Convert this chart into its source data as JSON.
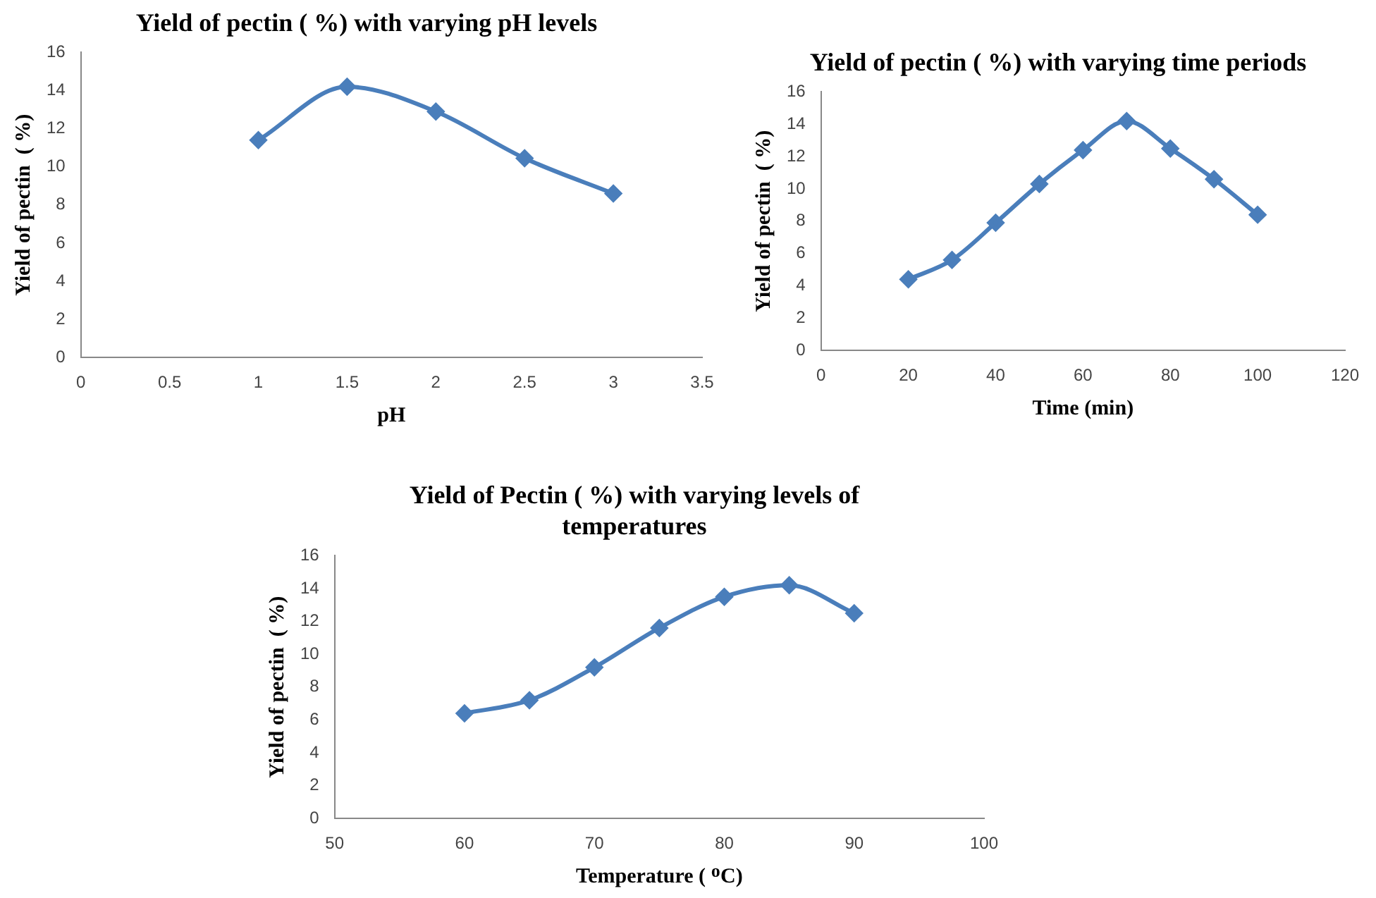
{
  "chart_data": [
    {
      "type": "line",
      "title": "Yield of pectin  ( %) with varying pH levels",
      "xlabel": "pH",
      "ylabel": "Yield of pectin  ( %)",
      "x": [
        1,
        1.5,
        2,
        2.5,
        3
      ],
      "series": [
        {
          "color": "#4a7ebb",
          "values": [
            11.4,
            14.2,
            12.9,
            10.45,
            8.6
          ]
        }
      ],
      "xlim": [
        0,
        3.5
      ],
      "xticks": [
        0,
        0.5,
        1,
        1.5,
        2,
        2.5,
        3,
        3.5
      ],
      "ylim": [
        0,
        16
      ],
      "yticks": [
        0,
        2,
        4,
        6,
        8,
        10,
        12,
        14,
        16
      ],
      "grid": false,
      "legend": false,
      "marker": "diamond",
      "line_style": "solid"
    },
    {
      "type": "line",
      "title": "Yield of pectin  ( %) with varying time periods",
      "xlabel": "Time (min)",
      "ylabel": "Yield of pectin  ( %)",
      "x": [
        20,
        30,
        40,
        50,
        60,
        70,
        80,
        90,
        100
      ],
      "series": [
        {
          "color": "#4a7ebb",
          "values": [
            4.4,
            5.6,
            7.9,
            10.3,
            12.4,
            14.2,
            12.5,
            10.6,
            8.4
          ]
        }
      ],
      "xlim": [
        0,
        120
      ],
      "xticks": [
        0,
        20,
        40,
        60,
        80,
        100,
        120
      ],
      "ylim": [
        0,
        16
      ],
      "yticks": [
        0,
        2,
        4,
        6,
        8,
        10,
        12,
        14,
        16
      ],
      "grid": false,
      "legend": false,
      "marker": "diamond",
      "line_style": "solid"
    },
    {
      "type": "line",
      "title": "Yield of Pectin ( %) with varying levels of temperatures",
      "xlabel": "Temperature ( ᴼC)",
      "ylabel": "Yield of pectin  ( %)",
      "x": [
        60,
        65,
        70,
        75,
        80,
        85,
        90
      ],
      "series": [
        {
          "color": "#4a7ebb",
          "values": [
            6.4,
            7.2,
            9.2,
            11.6,
            13.5,
            14.2,
            12.5
          ]
        }
      ],
      "xlim": [
        50,
        100
      ],
      "xticks": [
        50,
        60,
        70,
        80,
        90,
        100
      ],
      "ylim": [
        0,
        16
      ],
      "yticks": [
        0,
        2,
        4,
        6,
        8,
        10,
        12,
        14,
        16
      ],
      "grid": false,
      "legend": false,
      "marker": "diamond",
      "line_style": "solid"
    }
  ]
}
